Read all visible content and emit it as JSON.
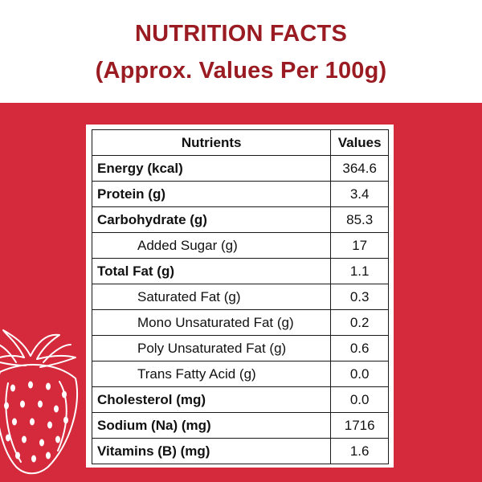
{
  "header": {
    "title": "NUTRITION FACTS",
    "subtitle": "(Approx. Values Per 100g)"
  },
  "colors": {
    "title": "#9a1c22",
    "panel": "#d52a3c",
    "table_bg": "#ffffff"
  },
  "decoration": {
    "icon": "strawberry-illustration-icon"
  },
  "table": {
    "headers": [
      "Nutrients",
      "Values"
    ],
    "rows": [
      {
        "label": "Energy (kcal)",
        "value": "364.6",
        "level": "main"
      },
      {
        "label": "Protein (g)",
        "value": "3.4",
        "level": "main"
      },
      {
        "label": "Carbohydrate (g)",
        "value": "85.3",
        "level": "main"
      },
      {
        "label": "Added Sugar (g)",
        "value": "17",
        "level": "sub"
      },
      {
        "label": "Total Fat (g)",
        "value": "1.1",
        "level": "main"
      },
      {
        "label": "Saturated Fat (g)",
        "value": "0.3",
        "level": "sub"
      },
      {
        "label": "Mono Unsaturated Fat (g)",
        "value": "0.2",
        "level": "sub"
      },
      {
        "label": "Poly Unsaturated Fat (g)",
        "value": "0.6",
        "level": "sub"
      },
      {
        "label": "Trans Fatty Acid (g)",
        "value": "0.0",
        "level": "sub"
      },
      {
        "label": "Cholesterol (mg)",
        "value": "0.0",
        "level": "main"
      },
      {
        "label": "Sodium (Na) (mg)",
        "value": "1716",
        "level": "main"
      },
      {
        "label": "Vitamins (B) (mg)",
        "value": "1.6",
        "level": "main"
      }
    ]
  }
}
